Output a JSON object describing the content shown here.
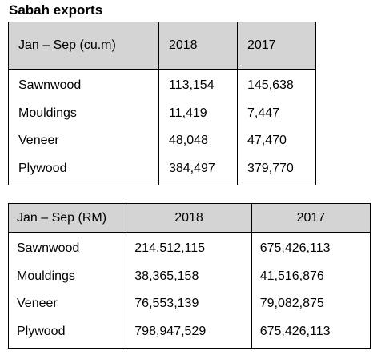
{
  "title": "Sabah exports",
  "table1": {
    "headers": [
      "Jan – Sep (cu.m)",
      "2018",
      "2017"
    ],
    "rows": [
      {
        "label": "Sawnwood",
        "y2018": "113,154",
        "y2017": "145,638"
      },
      {
        "label": "Mouldings",
        "y2018": "11,419",
        "y2017": "7,447"
      },
      {
        "label": "Veneer",
        "y2018": "48,048",
        "y2017": "47,470"
      },
      {
        "label": "Plywood",
        "y2018": "384,497",
        "y2017": "379,770"
      }
    ]
  },
  "table2": {
    "headers": [
      "Jan – Sep (RM)",
      "2018",
      "2017"
    ],
    "rows": [
      {
        "label": "Sawnwood",
        "y2018": "214,512,115",
        "y2017": "675,426,113"
      },
      {
        "label": "Mouldings",
        "y2018": "38,365,158",
        "y2017": "41,516,876"
      },
      {
        "label": "Veneer",
        "y2018": "76,553,139",
        "y2017": "79,082,875"
      },
      {
        "label": "Plywood",
        "y2018": "798,947,529",
        "y2017": "675,426,113"
      }
    ]
  }
}
